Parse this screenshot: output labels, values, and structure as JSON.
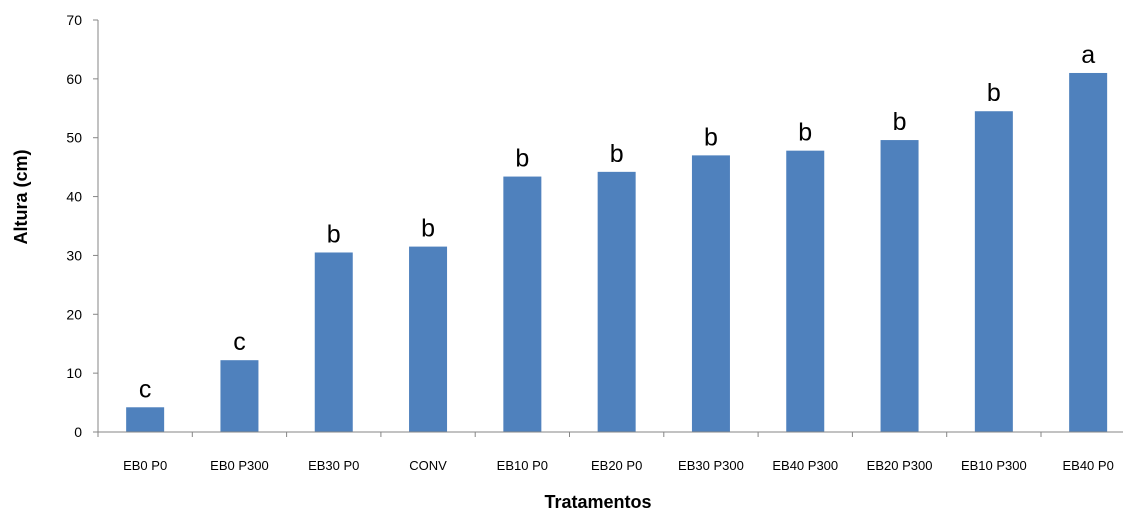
{
  "chart_data": {
    "type": "bar",
    "title": "",
    "xlabel": "Tratamentos",
    "ylabel": "Altura (cm)",
    "ylim": [
      0,
      70
    ],
    "yticks": [
      0,
      10,
      20,
      30,
      40,
      50,
      60,
      70
    ],
    "grid": false,
    "legend": "none",
    "bar_color": "#4F81BD",
    "categories": [
      "EB0 P0",
      "EB0 P300",
      "EB30 P0",
      "CONV",
      "EB10 P0",
      "EB20 P0",
      "EB30 P300",
      "EB40 P300",
      "EB20 P300",
      "EB10 P300",
      "EB40 P0"
    ],
    "values": [
      4.2,
      12.2,
      30.5,
      31.5,
      43.4,
      44.2,
      47.0,
      47.8,
      49.6,
      54.5,
      61.0
    ],
    "annotations": [
      "c",
      "c",
      "b",
      "b",
      "b",
      "b",
      "b",
      "b",
      "b",
      "b",
      "a"
    ]
  }
}
